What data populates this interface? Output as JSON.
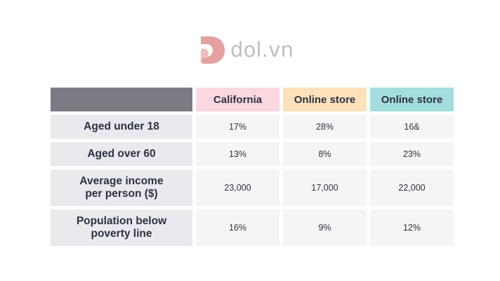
{
  "logo": {
    "text": "dol.vn",
    "icon": "dol-logo-icon",
    "color": "#e5a0a0"
  },
  "colors": {
    "corner": "#7a7b83",
    "label_bg": "#e9eaee",
    "cell_bg": "#f5f5f5",
    "header_bg": [
      "#fbd7df",
      "#fde1ba",
      "#a2dedd"
    ]
  },
  "table": {
    "headers": [
      "California",
      "Online store",
      "Online store"
    ],
    "rows": [
      {
        "label": "Aged under 18",
        "values": [
          "17%",
          "28%",
          "16&"
        ]
      },
      {
        "label": "Aged over 60",
        "values": [
          "13%",
          "8%",
          "23%"
        ]
      },
      {
        "label_lines": [
          "Average income",
          "per person ($)"
        ],
        "values": [
          "23,000",
          "17,000",
          "22,000"
        ]
      },
      {
        "label_lines": [
          "Population below",
          "poverty line"
        ],
        "values": [
          "16%",
          "9%",
          "12%"
        ]
      }
    ]
  },
  "chart_data": {
    "type": "table",
    "columns": [
      "",
      "California",
      "Online store",
      "Online store"
    ],
    "rows": [
      [
        "Aged under 18",
        "17%",
        "28%",
        "16&"
      ],
      [
        "Aged over 60",
        "13%",
        "8%",
        "23%"
      ],
      [
        "Average income per person ($)",
        "23,000",
        "17,000",
        "22,000"
      ],
      [
        "Population below poverty line",
        "16%",
        "9%",
        "12%"
      ]
    ]
  }
}
